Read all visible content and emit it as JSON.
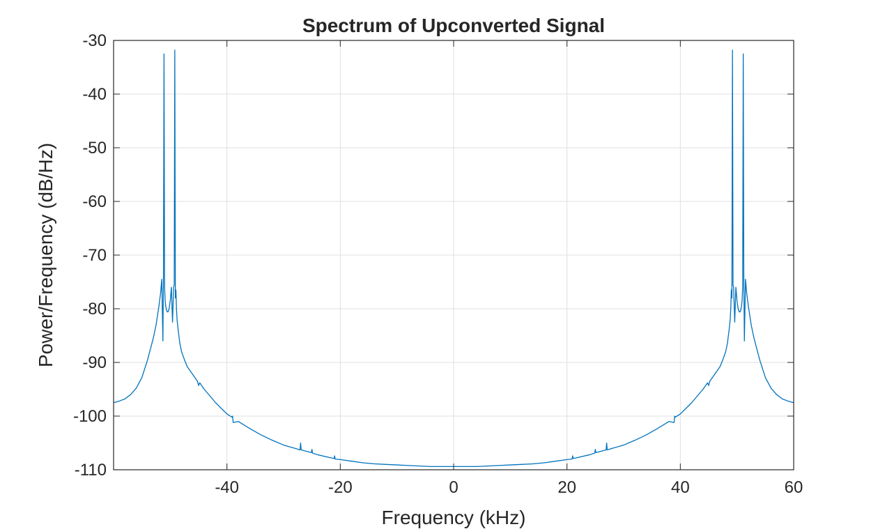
{
  "chart_data": {
    "type": "line",
    "title": "Spectrum of Upconverted Signal",
    "xlabel": "Frequency (kHz)",
    "ylabel": "Power/Frequency (dB/Hz)",
    "xlim": [
      -60,
      60
    ],
    "ylim": [
      -110,
      -30
    ],
    "xticks": [
      -40,
      -20,
      0,
      20,
      40,
      60
    ],
    "xtick_labels": [
      "-40",
      "-20",
      "0",
      "20",
      "40",
      "60"
    ],
    "yticks": [
      -110,
      -100,
      -90,
      -80,
      -70,
      -60,
      -50,
      -40,
      -30
    ],
    "ytick_labels": [
      "-110",
      "-100",
      "-90",
      "-80",
      "-70",
      "-60",
      "-50",
      "-40",
      "-30"
    ],
    "grid": true,
    "color": "#0072BD",
    "series": [
      {
        "x": [
          -60,
          -59,
          -58,
          -57,
          -56,
          -55,
          -54,
          -53,
          -52.5,
          -52,
          -51.7,
          -51.5,
          -51.3,
          -51.2,
          -51.1,
          -51.0,
          -50.9,
          -50.8,
          -50.6,
          -50.4,
          -50.2,
          -50.0,
          -49.8,
          -49.6,
          -49.4,
          -49.3,
          -49.2,
          -49.1,
          -49.0,
          -48.9,
          -48.8,
          -48.6,
          -48.3,
          -48,
          -47.5,
          -47,
          -46,
          -45.2,
          -45,
          -44.8,
          -44,
          -42,
          -40,
          -39.1,
          -39.0,
          -38.9,
          -38,
          -36,
          -34,
          -32,
          -30,
          -28,
          -27.1,
          -27.0,
          -26.9,
          -25.1,
          -25.0,
          -24.9,
          -24,
          -22,
          -21.1,
          -21.0,
          -20.9,
          -20,
          -18,
          -16,
          -14,
          -12,
          -10,
          -8,
          -6,
          -4,
          -2,
          0,
          2,
          4,
          6,
          8,
          10,
          12,
          14,
          16,
          18,
          20,
          20.9,
          21.0,
          21.1,
          22,
          24,
          24.9,
          25.0,
          25.1,
          26.9,
          27.0,
          27.1,
          28,
          30,
          32,
          34,
          36,
          38,
          38.9,
          39.0,
          39.1,
          40,
          42,
          44,
          44.8,
          45,
          45.2,
          46,
          47,
          47.5,
          48,
          48.3,
          48.6,
          48.8,
          48.9,
          49.0,
          49.1,
          49.2,
          49.3,
          49.4,
          49.6,
          49.8,
          50.0,
          50.2,
          50.4,
          50.6,
          50.8,
          50.9,
          51.0,
          51.1,
          51.2,
          51.3,
          51.5,
          51.7,
          52,
          52.5,
          53,
          54,
          55,
          56,
          57,
          58,
          59,
          60
        ],
        "y": [
          -97.5,
          -97.2,
          -96.8,
          -96.0,
          -94.8,
          -92.8,
          -89.5,
          -85.5,
          -83.0,
          -79.5,
          -77.0,
          -74.5,
          -86.0,
          -74.0,
          -32.5,
          -76.0,
          -78.5,
          -79.5,
          -80.5,
          -80.6,
          -80.0,
          -78.5,
          -76.0,
          -82.5,
          -76.0,
          -75.5,
          -31.8,
          -78.0,
          -76.5,
          -80.0,
          -82.0,
          -84.0,
          -86.5,
          -88.0,
          -89.5,
          -90.8,
          -92.3,
          -93.5,
          -94.3,
          -93.8,
          -95.0,
          -97.5,
          -99.6,
          -100.2,
          -100.0,
          -101.2,
          -101.0,
          -102.3,
          -103.5,
          -104.5,
          -105.4,
          -106.0,
          -106.3,
          -105.0,
          -106.3,
          -106.8,
          -106.2,
          -106.9,
          -107.2,
          -107.7,
          -107.9,
          -107.4,
          -108.0,
          -108.1,
          -108.4,
          -108.7,
          -108.9,
          -109.0,
          -109.1,
          -109.2,
          -109.3,
          -109.4,
          -109.4,
          -109.4,
          -109.4,
          -109.4,
          -109.3,
          -109.2,
          -109.1,
          -109.0,
          -108.9,
          -108.7,
          -108.4,
          -108.1,
          -108.0,
          -107.4,
          -107.9,
          -107.7,
          -107.2,
          -106.9,
          -106.2,
          -106.8,
          -106.3,
          -105.0,
          -106.3,
          -106.0,
          -105.4,
          -104.5,
          -103.5,
          -102.3,
          -101.0,
          -101.2,
          -100.0,
          -100.2,
          -99.6,
          -97.5,
          -95.0,
          -93.8,
          -94.3,
          -93.5,
          -92.3,
          -90.8,
          -89.5,
          -88.0,
          -86.5,
          -84.0,
          -82.0,
          -80.0,
          -76.5,
          -78.0,
          -31.8,
          -75.5,
          -76.0,
          -82.5,
          -76.0,
          -78.5,
          -80.0,
          -80.6,
          -80.5,
          -79.5,
          -78.5,
          -76.0,
          -32.5,
          -74.0,
          -86.0,
          -74.5,
          -77.0,
          -79.5,
          -83.0,
          -85.5,
          -89.5,
          -92.8,
          -94.8,
          -96.0,
          -96.8,
          -97.2,
          -97.5
        ]
      }
    ]
  }
}
